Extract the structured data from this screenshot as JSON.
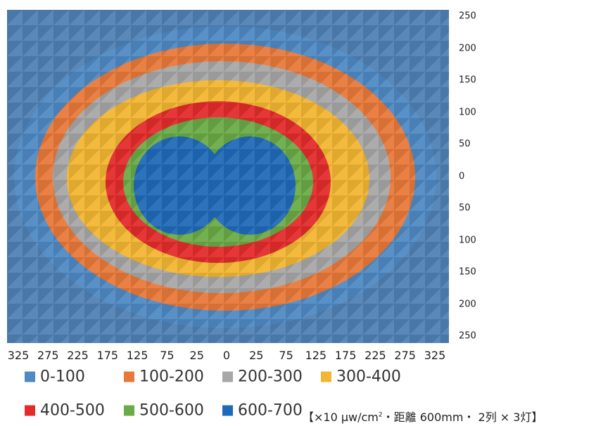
{
  "chart_data": {
    "type": "heatmap",
    "title": "",
    "xlabel": "",
    "ylabel": "",
    "x_ticks": [
      "325",
      "275",
      "225",
      "175",
      "125",
      "75",
      "25",
      "0",
      "25",
      "75",
      "125",
      "175",
      "225",
      "275",
      "325"
    ],
    "y_ticks": [
      "250",
      "200",
      "150",
      "100",
      "50",
      "0",
      "50",
      "100",
      "150",
      "200",
      "250"
    ],
    "legend": [
      {
        "label": "0-100",
        "color": "#4f8ac4"
      },
      {
        "label": "100-200",
        "color": "#e8793a"
      },
      {
        "label": "200-300",
        "color": "#a7a7a7"
      },
      {
        "label": "300-400",
        "color": "#f2b632"
      },
      {
        "label": "400-500",
        "color": "#e32b2b"
      },
      {
        "label": "500-600",
        "color": "#6aab47"
      },
      {
        "label": "600-700",
        "color": "#1f6ab8"
      }
    ],
    "zones": [
      {
        "range": "0-100",
        "level": 0
      },
      {
        "range": "100-200",
        "level": 1
      },
      {
        "range": "200-300",
        "level": 2
      },
      {
        "range": "300-400",
        "level": 3
      },
      {
        "range": "400-500",
        "level": 4
      },
      {
        "range": "500-600",
        "level": 5
      },
      {
        "range": "600-700",
        "level": 6
      }
    ],
    "peaks": [
      {
        "x": -100,
        "y": -10,
        "level": 6
      },
      {
        "x": 60,
        "y": -10,
        "level": 6
      }
    ]
  },
  "footnote": {
    "prefix": "【×10 µw/cm",
    "sup": "2",
    "suffix": "・距離 600mm・ 2列 × 3灯】"
  }
}
